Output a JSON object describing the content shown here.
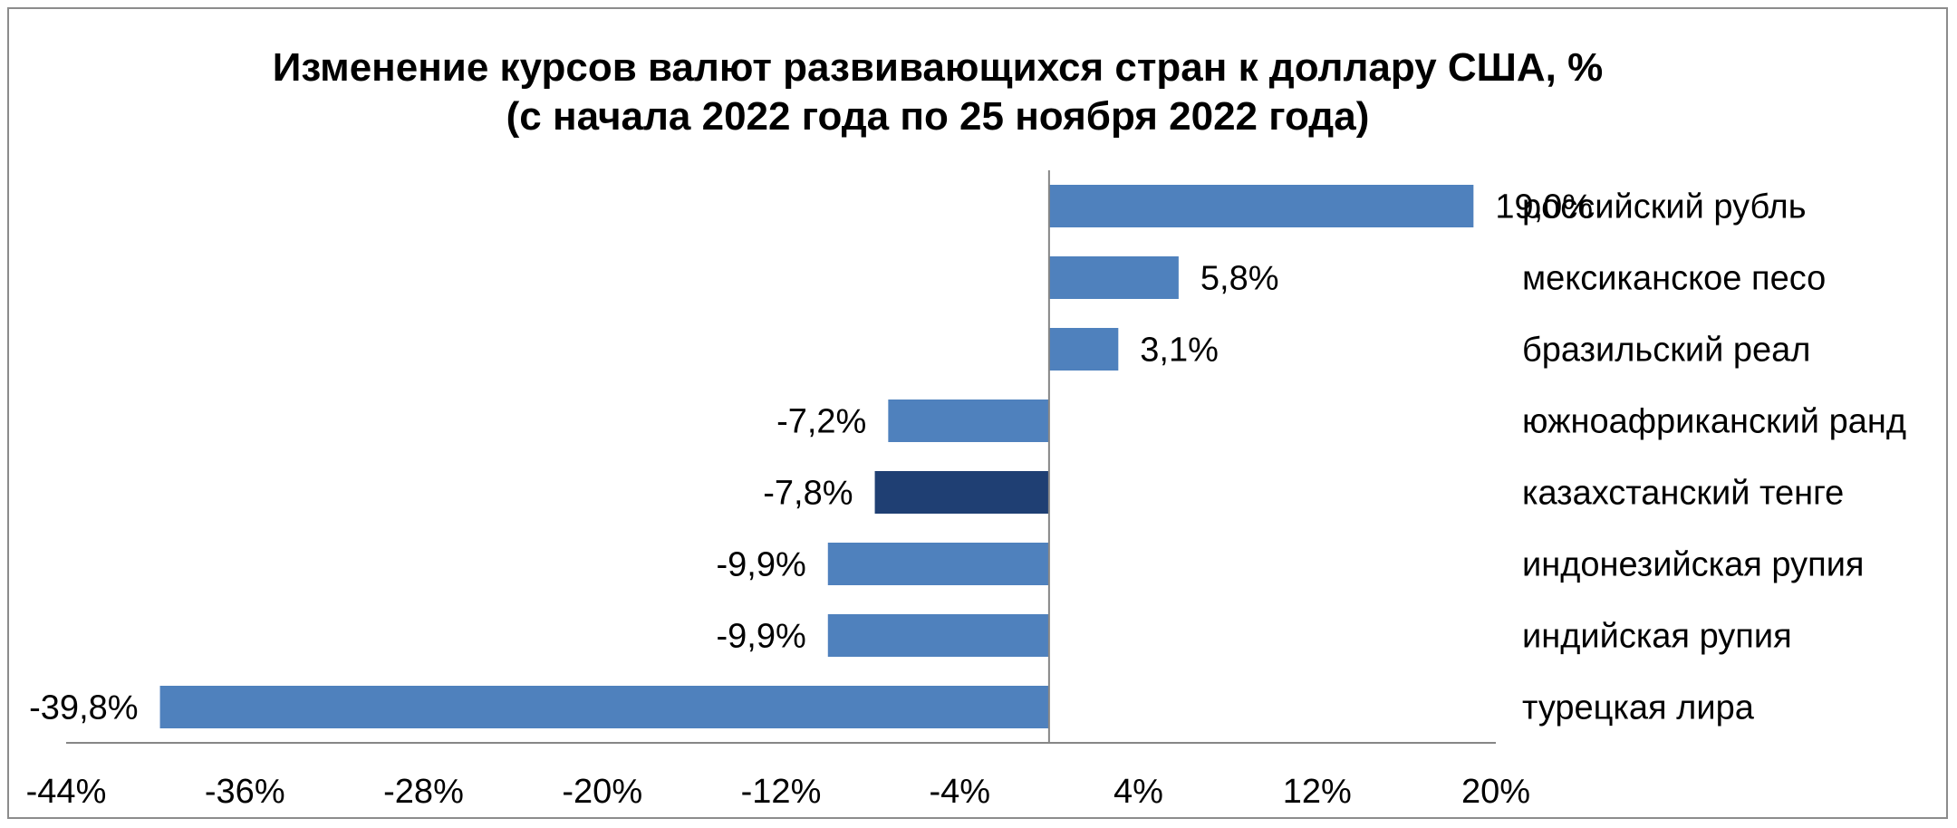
{
  "chart_data": {
    "type": "bar",
    "orientation": "horizontal",
    "title": "Изменение курсов валют развивающихся стран к доллару США, %",
    "subtitle": "(с начала 2022 года по 25 ноября 2022 года)",
    "categories": [
      "российский рубль",
      "мексиканское песо",
      "бразильский реал",
      "южноафриканский ранд",
      "казахстанский тенге",
      "индонезийская рупия",
      "индийская рупия",
      "турецкая лира"
    ],
    "values": [
      19.0,
      5.8,
      3.1,
      -7.2,
      -7.8,
      -9.9,
      -9.9,
      -39.8
    ],
    "value_labels": [
      "19,0%",
      "5,8%",
      "3,1%",
      "-7,2%",
      "-7,8%",
      "-9,9%",
      "-9,9%",
      "-39,8%"
    ],
    "highlight_index": 4,
    "xlim": [
      -44,
      20
    ],
    "x_ticks": [
      -44,
      -36,
      -28,
      -20,
      -12,
      -4,
      4,
      12,
      20
    ],
    "x_tick_labels": [
      "-44%",
      "-36%",
      "-28%",
      "-20%",
      "-12%",
      "-4%",
      "4%",
      "12%",
      "20%"
    ],
    "xlabel": "",
    "ylabel": "",
    "grid": false,
    "legend": "none",
    "colors": {
      "bar": "#4f81bd",
      "highlight": "#1f3f73",
      "axis": "#868686",
      "border": "#8c8c8c"
    }
  }
}
